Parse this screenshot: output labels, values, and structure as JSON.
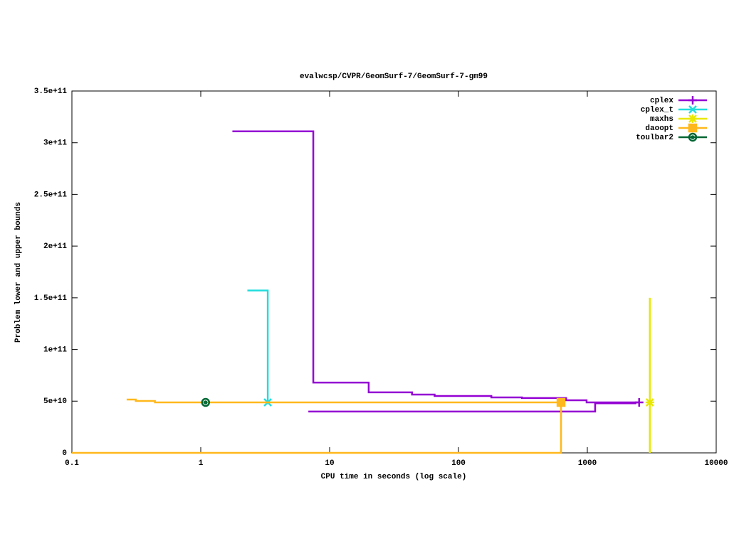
{
  "chart_data": {
    "type": "step",
    "title": "evalwcsp/CVPR/GeomSurf-7/GeomSurf-7-gm99",
    "x_label": "CPU time in seconds (log scale)",
    "y_label": "Problem lower and upper bounds",
    "x_log_scale": true,
    "xlim": [
      0.1,
      10000
    ],
    "xticks": [
      0.1,
      1,
      10,
      100,
      1000,
      10000
    ],
    "ylim": [
      0,
      350000000000
    ],
    "yticks": [
      0,
      {
        "value": 50000000000,
        "label": "5e+10"
      },
      {
        "value": 100000000000,
        "label": "1e+11"
      },
      {
        "value": 150000000000,
        "label": "1.5e+11"
      },
      {
        "value": 200000000000,
        "label": "2e+11"
      },
      {
        "value": 250000000000,
        "label": "2.5e+11"
      },
      {
        "value": 300000000000,
        "label": "3e+11"
      },
      {
        "value": 350000000000,
        "label": "3.5e+11"
      }
    ],
    "legend_position": "top-right",
    "series": [
      {
        "name": "cplex",
        "color": "#9400d3",
        "marker": "plus",
        "upper": {
          "x": [
            1.76,
            7.47,
            20.1,
            43.6,
            65.3,
            180,
            311,
            684,
            987,
            2524
          ],
          "values": [
            311000000000,
            68000000000,
            58500000000,
            56400000000,
            55000000000,
            53600000000,
            53000000000,
            50900000000,
            48800000000,
            48800000000
          ]
        },
        "lower": {
          "x": [
            6.84,
            1150,
            2400
          ],
          "values": [
            40000000000,
            48000000000,
            48000000000
          ]
        },
        "end": {
          "x": 2524,
          "value": 48800000000
        }
      },
      {
        "name": "cplex_t",
        "color": "#22dddd",
        "marker": "cross",
        "upper": {
          "x": [
            2.3,
            3.31
          ],
          "values": [
            157000000000,
            48800000000
          ]
        },
        "end": {
          "x": 3.31,
          "value": 48800000000
        }
      },
      {
        "name": "maxhs",
        "color": "#e8e800",
        "marker": "star",
        "upper": {
          "x": [
            3055,
            3055
          ],
          "values": [
            150000000000,
            48800000000
          ]
        },
        "lower": {
          "x": [
            3055,
            3055
          ],
          "values": [
            0,
            48800000000
          ]
        },
        "end": {
          "x": 3055,
          "value": 48800000000
        }
      },
      {
        "name": "daoopt",
        "color": "#ffb81c",
        "marker": "square",
        "upper": {
          "x": [
            0.266,
            0.313,
            0.441,
            625
          ],
          "values": [
            51600000000,
            50200000000,
            48800000000,
            48800000000
          ]
        },
        "lower": {
          "x": [
            0.1,
            625
          ],
          "values": [
            0,
            48800000000
          ]
        },
        "end": {
          "x": 625,
          "value": 48800000000
        }
      },
      {
        "name": "toulbar2",
        "color": "#006633",
        "marker": "circle",
        "end": {
          "x": 1.09,
          "value": 48800000000
        }
      }
    ]
  }
}
